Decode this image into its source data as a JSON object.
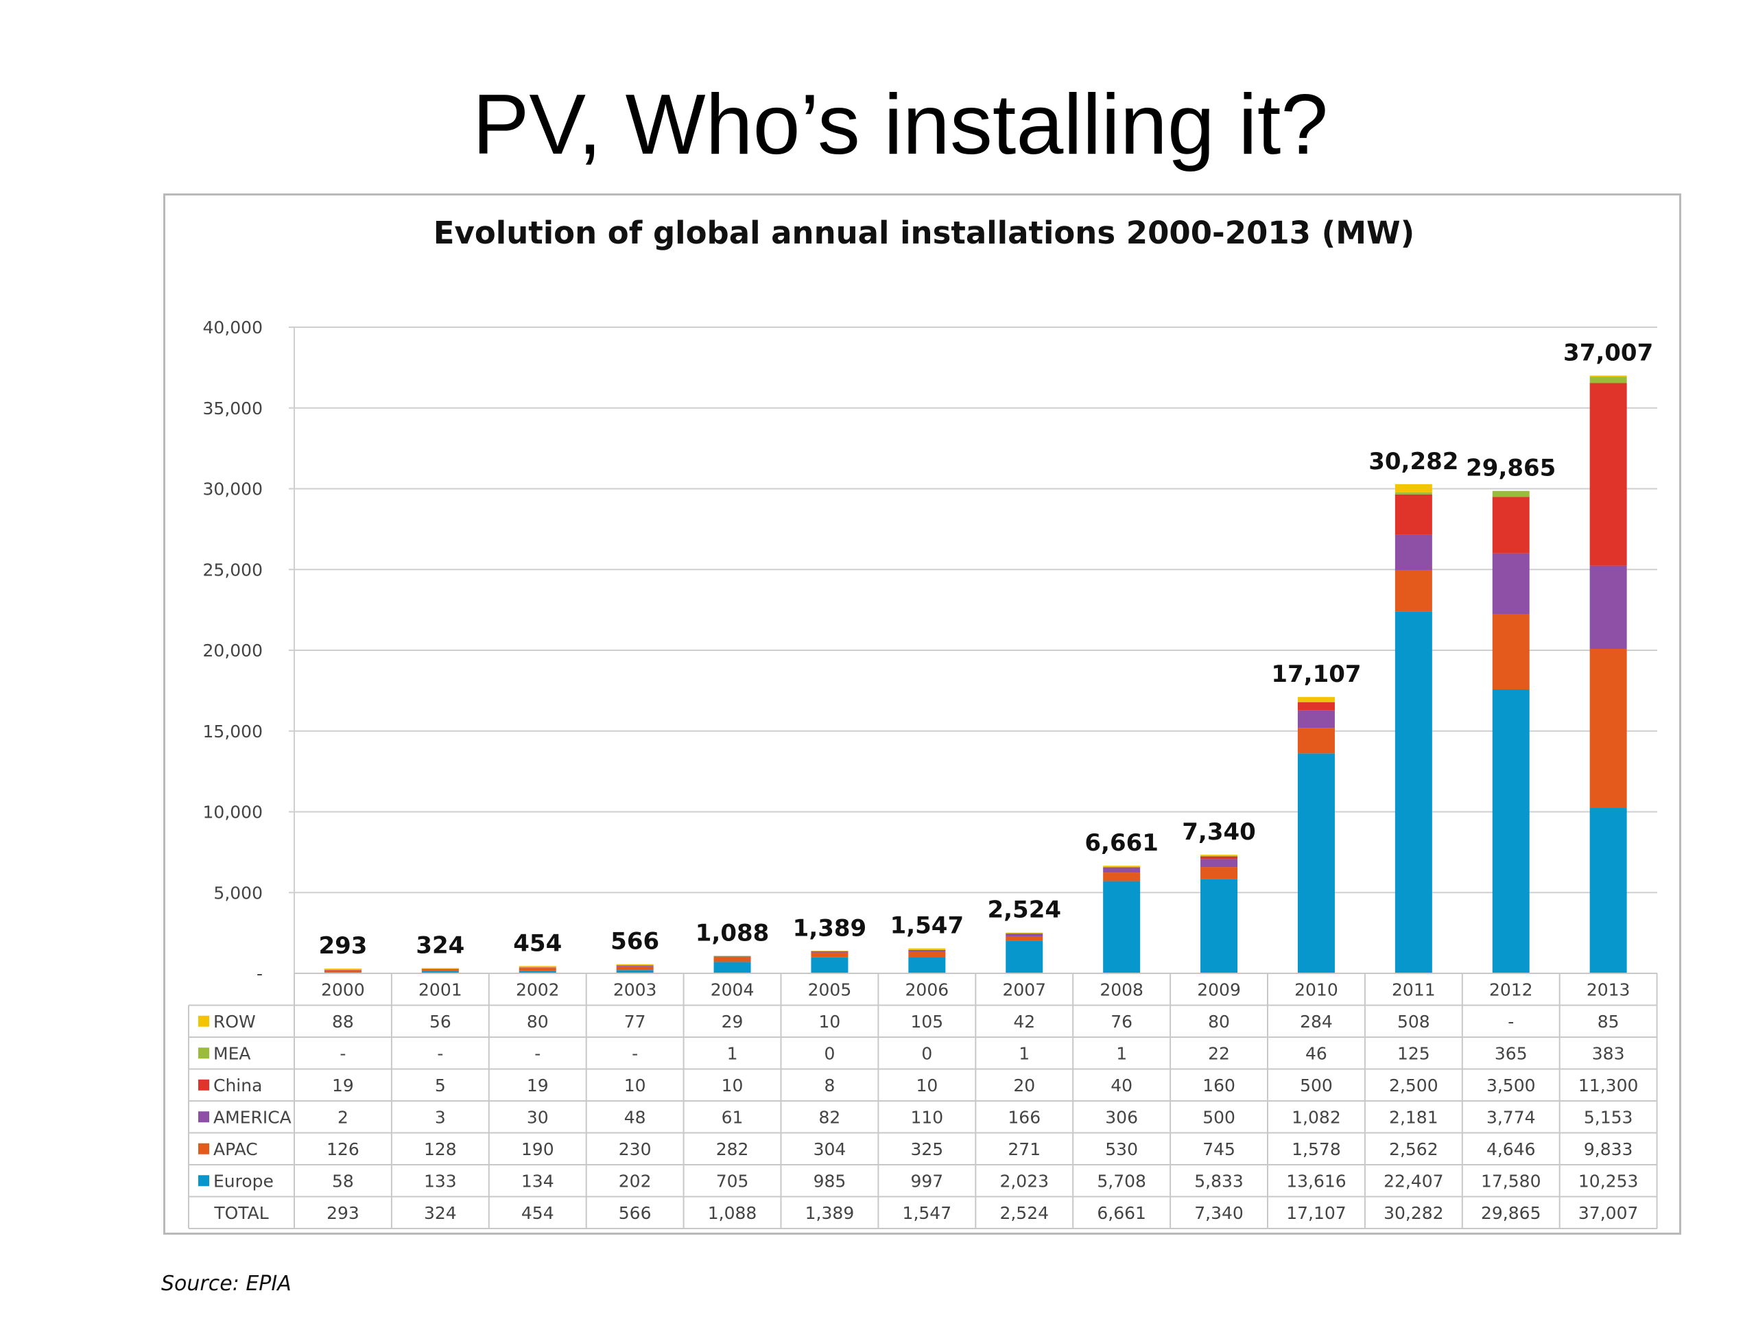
{
  "slide": {
    "title": "PV, Who’s installing it?",
    "source": "Source: EPIA"
  },
  "chart_data": {
    "type": "bar",
    "stacked": true,
    "title": "Evolution of global annual installations 2000-2013 (MW)",
    "xlabel": "",
    "ylabel": "",
    "ylim": [
      0,
      40000
    ],
    "yticks": [
      "-",
      "5,000",
      "10,000",
      "15,000",
      "20,000",
      "25,000",
      "30,000",
      "35,000",
      "40,000"
    ],
    "grid": true,
    "legend": "table-left",
    "categories": [
      "2000",
      "2001",
      "2002",
      "2003",
      "2004",
      "2005",
      "2006",
      "2007",
      "2008",
      "2009",
      "2010",
      "2011",
      "2012",
      "2013"
    ],
    "series": [
      {
        "name": "ROW",
        "color": "#f5c400",
        "values": [
          88,
          56,
          80,
          77,
          29,
          10,
          105,
          42,
          76,
          80,
          284,
          508,
          0,
          85
        ],
        "labels": [
          "88",
          "56",
          "80",
          "77",
          "29",
          "10",
          "105",
          "42",
          "76",
          "80",
          "284",
          "508",
          "-",
          "85"
        ]
      },
      {
        "name": "MEA",
        "color": "#9bbb3b",
        "values": [
          0,
          0,
          0,
          0,
          1,
          0,
          0,
          1,
          1,
          22,
          46,
          125,
          365,
          383
        ],
        "labels": [
          "-",
          "-",
          "-",
          "-",
          "1",
          "0",
          "0",
          "1",
          "1",
          "22",
          "46",
          "125",
          "365",
          "383"
        ]
      },
      {
        "name": "China",
        "color": "#e0332a",
        "values": [
          19,
          5,
          19,
          10,
          10,
          8,
          10,
          20,
          40,
          160,
          500,
          2500,
          3500,
          11300
        ],
        "labels": [
          "19",
          "5",
          "19",
          "10",
          "10",
          "8",
          "10",
          "20",
          "40",
          "160",
          "500",
          "2,500",
          "3,500",
          "11,300"
        ]
      },
      {
        "name": "AMERICA",
        "color": "#8e4fa6",
        "values": [
          2,
          3,
          30,
          48,
          61,
          82,
          110,
          166,
          306,
          500,
          1082,
          2181,
          3774,
          5153
        ],
        "labels": [
          "2",
          "3",
          "30",
          "48",
          "61",
          "82",
          "110",
          "166",
          "306",
          "500",
          "1,082",
          "2,181",
          "3,774",
          "5,153"
        ]
      },
      {
        "name": "APAC",
        "color": "#e35a1c",
        "values": [
          126,
          128,
          190,
          230,
          282,
          304,
          325,
          271,
          530,
          745,
          1578,
          2562,
          4646,
          9833
        ],
        "labels": [
          "126",
          "128",
          "190",
          "230",
          "282",
          "304",
          "325",
          "271",
          "530",
          "745",
          "1,578",
          "2,562",
          "4,646",
          "9,833"
        ]
      },
      {
        "name": "Europe",
        "color": "#0897cc",
        "values": [
          58,
          133,
          134,
          202,
          705,
          985,
          997,
          2023,
          5708,
          5833,
          13616,
          22407,
          17580,
          10253
        ],
        "labels": [
          "58",
          "133",
          "134",
          "202",
          "705",
          "985",
          "997",
          "2,023",
          "5,708",
          "5,833",
          "13,616",
          "22,407",
          "17,580",
          "10,253"
        ]
      }
    ],
    "totals": [
      293,
      324,
      454,
      566,
      1088,
      1389,
      1547,
      2524,
      6661,
      7340,
      17107,
      30282,
      29865,
      37007
    ],
    "total_labels": [
      "293",
      "324",
      "454",
      "566",
      "1,088",
      "1,389",
      "1,547",
      "2,524",
      "6,661",
      "7,340",
      "17,107",
      "30,282",
      "29,865",
      "37,007"
    ],
    "total_row_label": "TOTAL"
  }
}
